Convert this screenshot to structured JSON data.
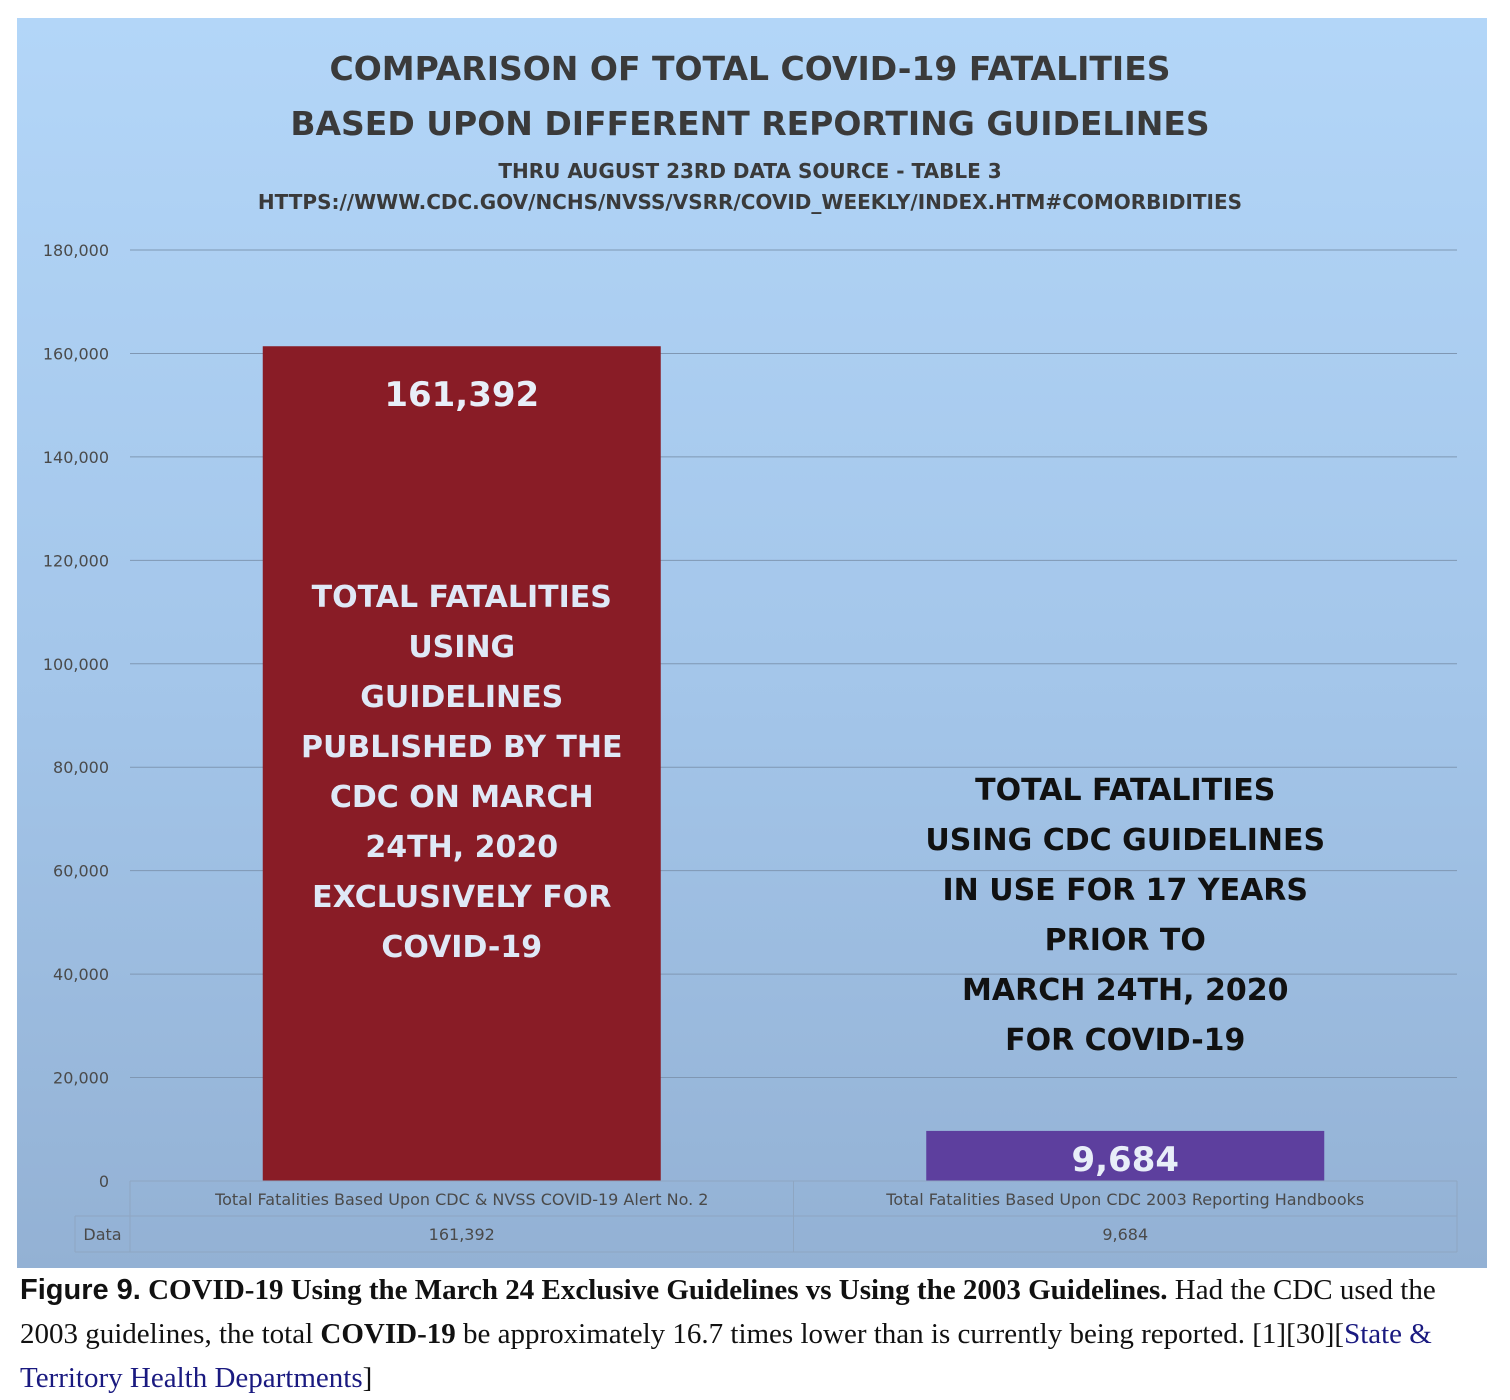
{
  "chart_data": {
    "type": "bar",
    "title": "COMPARISON OF TOTAL COVID-19 FATALITIES",
    "title_line2": "BASED UPON DIFFERENT REPORTING GUIDELINES",
    "subtitle": "THRU AUGUST 23RD DATA SOURCE - TABLE 3",
    "subtitle_line2": "HTTPS://WWW.CDC.GOV/NCHS/NVSS/VSRR/COVID_WEEKLY/INDEX.HTM#COMORBIDITIES",
    "categories": [
      "Total Fatalities Based Upon CDC & NVSS COVID-19 Alert No. 2",
      "Total Fatalities Based Upon CDC 2003 Reporting Handbooks"
    ],
    "values": [
      161392,
      9684
    ],
    "value_labels": [
      "161,392",
      "9,684"
    ],
    "bar_colors": [
      "#891c26",
      "#5d3f9e"
    ],
    "ylim": [
      0,
      180000
    ],
    "yticks": [
      0,
      20000,
      40000,
      60000,
      80000,
      100000,
      120000,
      140000,
      160000,
      180000
    ],
    "ytick_labels": [
      "0",
      "20,000",
      "40,000",
      "60,000",
      "80,000",
      "100,000",
      "120,000",
      "140,000",
      "160,000",
      "180,000"
    ],
    "grid": true,
    "data_table": {
      "row_label": "Data",
      "cells": [
        "161,392",
        "9,684"
      ]
    },
    "annotations": [
      {
        "lines": [
          "TOTAL FATALITIES",
          "USING",
          "GUIDELINES",
          "PUBLISHED BY THE",
          "CDC ON MARCH",
          "24TH, 2020",
          "EXCLUSIVELY FOR",
          "COVID-19"
        ],
        "color": "#dfe8f6"
      },
      {
        "lines": [
          "TOTAL FATALITIES",
          "USING CDC GUIDELINES",
          "IN USE FOR 17 YEARS",
          "PRIOR TO",
          "MARCH 24TH, 2020",
          "FOR COVID-19"
        ],
        "color": "#111111"
      }
    ]
  },
  "caption": {
    "figure_label": "Figure 9.",
    "bold_title": "COVID-19 Using the March 24 Exclusive Guidelines vs Using the 2003 Guidelines.",
    "text_1": "Had the CDC used the 2003 guidelines, the total",
    "bold_term": "COVID-19",
    "text_2": "be approximately 16.7 times lower than is currently being reported.",
    "ref_1": "[1]",
    "ref_2": "[30]",
    "ref_3_open": "[",
    "ref_3_link": "State & Territory Health Departments",
    "ref_3_close": "]"
  }
}
